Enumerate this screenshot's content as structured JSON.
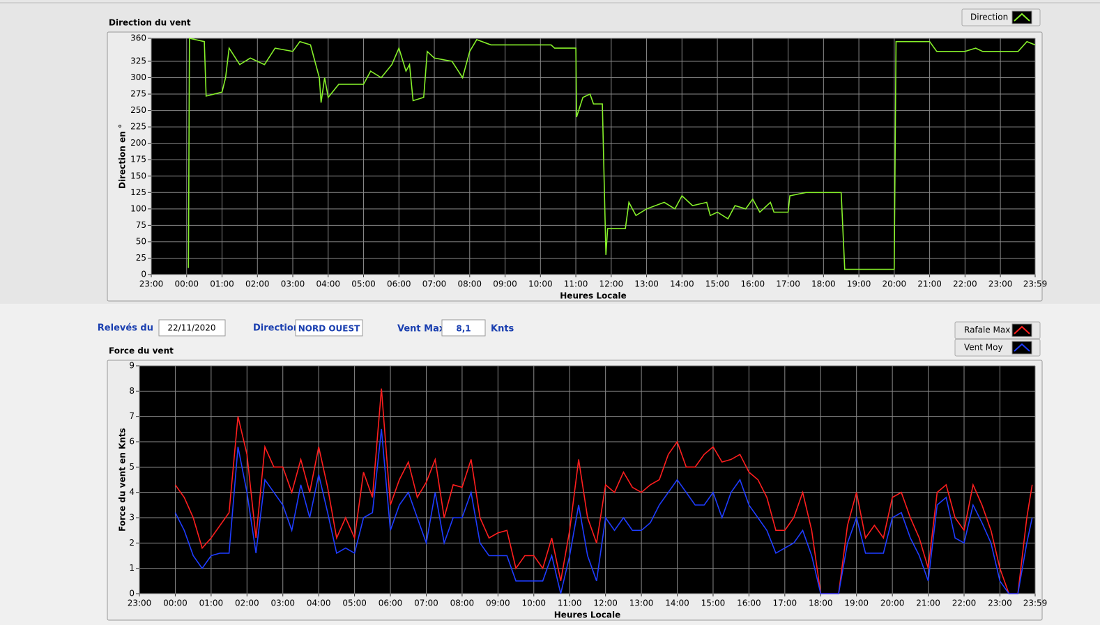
{
  "form": {
    "date_label": "Relevés du",
    "date": "22/11/2020",
    "direction_label": "Direction",
    "direction": "NORD OUEST",
    "max_label": "Vent Max",
    "max": "8,1",
    "max_unit": "Knts"
  },
  "chart_data": [
    {
      "type": "line",
      "title": "Direction du vent",
      "xlabel": "Heures Locale",
      "ylabel": "Direction en °",
      "x": [
        0.05,
        0.08,
        0.5,
        0.55,
        1.0,
        1.1,
        1.2,
        1.5,
        1.8,
        2.2,
        2.5,
        3.0,
        3.2,
        3.5,
        3.75,
        3.8,
        3.9,
        4.0,
        4.3,
        5.0,
        5.2,
        5.5,
        5.8,
        6.0,
        6.2,
        6.3,
        6.4,
        6.7,
        6.8,
        7.0,
        7.5,
        7.8,
        8.0,
        8.2,
        8.6,
        9.0,
        10.3,
        10.4,
        11.0,
        11.02,
        11.2,
        11.4,
        11.5,
        11.75,
        11.85,
        11.9,
        12.4,
        12.5,
        12.7,
        13.0,
        13.5,
        13.8,
        14.0,
        14.3,
        14.7,
        14.8,
        15.0,
        15.3,
        15.5,
        15.8,
        16.0,
        16.2,
        16.5,
        16.6,
        17.0,
        17.05,
        17.5,
        18.5,
        18.6,
        20.0,
        20.05,
        21.0,
        21.2,
        22.0,
        22.3,
        22.5,
        23.5,
        23.75,
        23.98
      ],
      "series": [
        {
          "name": "Direction",
          "color": "#86f02a",
          "values": [
            10,
            360,
            355,
            272,
            278,
            300,
            345,
            320,
            330,
            320,
            345,
            340,
            355,
            350,
            300,
            262,
            300,
            270,
            290,
            290,
            310,
            300,
            320,
            345,
            310,
            320,
            265,
            270,
            340,
            330,
            325,
            300,
            340,
            358,
            350,
            350,
            350,
            345,
            345,
            240,
            270,
            275,
            260,
            260,
            30,
            70,
            70,
            110,
            90,
            100,
            110,
            100,
            120,
            105,
            110,
            90,
            95,
            85,
            105,
            100,
            115,
            95,
            110,
            95,
            95,
            120,
            125,
            125,
            8,
            8,
            355,
            355,
            340,
            340,
            345,
            340,
            340,
            355,
            350
          ]
        }
      ],
      "xlim": [
        -1,
        23.983
      ],
      "xticks": [
        {
          "value": -1,
          "label": "23:00"
        },
        {
          "value": 0,
          "label": "00:00"
        },
        {
          "value": 1,
          "label": "01:00"
        },
        {
          "value": 2,
          "label": "02:00"
        },
        {
          "value": 3,
          "label": "03:00"
        },
        {
          "value": 4,
          "label": "04:00"
        },
        {
          "value": 5,
          "label": "05:00"
        },
        {
          "value": 6,
          "label": "06:00"
        },
        {
          "value": 7,
          "label": "07:00"
        },
        {
          "value": 8,
          "label": "08:00"
        },
        {
          "value": 9,
          "label": "09:00"
        },
        {
          "value": 10,
          "label": "10:00"
        },
        {
          "value": 11,
          "label": "11:00"
        },
        {
          "value": 12,
          "label": "12:00"
        },
        {
          "value": 13,
          "label": "13:00"
        },
        {
          "value": 14,
          "label": "14:00"
        },
        {
          "value": 15,
          "label": "15:00"
        },
        {
          "value": 16,
          "label": "16:00"
        },
        {
          "value": 17,
          "label": "17:00"
        },
        {
          "value": 18,
          "label": "18:00"
        },
        {
          "value": 19,
          "label": "19:00"
        },
        {
          "value": 20,
          "label": "20:00"
        },
        {
          "value": 21,
          "label": "21:00"
        },
        {
          "value": 22,
          "label": "22:00"
        },
        {
          "value": 23,
          "label": "23:00"
        },
        {
          "value": 23.983,
          "label": "23:59"
        }
      ],
      "ylim": [
        0,
        360
      ],
      "yticks": [
        0,
        25,
        50,
        75,
        100,
        125,
        150,
        175,
        200,
        225,
        250,
        275,
        300,
        325,
        360
      ],
      "grid": true,
      "legend": "top-right"
    },
    {
      "type": "line",
      "title": "Force du vent",
      "xlabel": "Heures Locale",
      "ylabel": "Force du vent en Knts",
      "x": [
        0,
        0.25,
        0.5,
        0.75,
        1,
        1.25,
        1.5,
        1.75,
        2,
        2.25,
        2.5,
        2.75,
        3,
        3.25,
        3.5,
        3.75,
        4,
        4.25,
        4.5,
        4.75,
        5,
        5.25,
        5.5,
        5.75,
        6,
        6.25,
        6.5,
        6.75,
        7,
        7.25,
        7.5,
        7.75,
        8,
        8.25,
        8.5,
        8.75,
        9,
        9.25,
        9.5,
        9.75,
        10,
        10.25,
        10.5,
        10.75,
        11,
        11.25,
        11.5,
        11.75,
        12,
        12.25,
        12.5,
        12.75,
        13,
        13.25,
        13.5,
        13.75,
        14,
        14.25,
        14.5,
        14.75,
        15,
        15.25,
        15.5,
        15.75,
        16,
        16.25,
        16.5,
        16.75,
        17,
        17.25,
        17.5,
        17.75,
        18,
        18.5,
        18.75,
        19,
        19.25,
        19.5,
        19.75,
        20,
        20.25,
        20.5,
        20.75,
        21,
        21.25,
        21.5,
        21.75,
        22,
        22.25,
        22.5,
        22.75,
        23,
        23.25,
        23.5,
        23.75,
        23.9
      ],
      "series": [
        {
          "name": "Rafale Max",
          "color": "#ff1e1e",
          "values": [
            4.3,
            3.8,
            3.0,
            1.8,
            2.2,
            2.7,
            3.2,
            7.0,
            5.5,
            2.2,
            5.8,
            5.0,
            5.0,
            4.0,
            5.3,
            4.0,
            5.8,
            4.2,
            2.2,
            3.0,
            2.2,
            4.8,
            3.8,
            8.1,
            3.5,
            4.5,
            5.2,
            3.8,
            4.4,
            5.3,
            3.0,
            4.3,
            4.2,
            5.3,
            3.0,
            2.2,
            2.4,
            2.5,
            1.0,
            1.5,
            1.5,
            1.0,
            2.2,
            0.5,
            2.5,
            5.3,
            3.0,
            2.0,
            4.3,
            4.0,
            4.8,
            4.2,
            4.0,
            4.3,
            4.5,
            5.5,
            6.0,
            5.0,
            5.0,
            5.5,
            5.8,
            5.2,
            5.3,
            5.5,
            4.8,
            4.5,
            3.8,
            2.5,
            2.5,
            3.0,
            4.0,
            2.5,
            0,
            0,
            2.7,
            4.0,
            2.2,
            2.7,
            2.2,
            3.8,
            4.0,
            3.0,
            2.2,
            1.0,
            4.0,
            4.3,
            3.0,
            2.5,
            4.3,
            3.5,
            2.5,
            1.0,
            0,
            0,
            3.0,
            4.3
          ]
        },
        {
          "name": "Vent Moy",
          "color": "#1e3cff",
          "values": [
            3.2,
            2.5,
            1.5,
            1.0,
            1.5,
            1.6,
            1.6,
            5.8,
            4.0,
            1.6,
            4.5,
            4.0,
            3.5,
            2.5,
            4.3,
            3.0,
            4.7,
            3.2,
            1.6,
            1.8,
            1.6,
            3.0,
            3.2,
            6.5,
            2.5,
            3.5,
            4.0,
            3.0,
            2.0,
            4.0,
            2.0,
            3.0,
            3.0,
            4.0,
            2.0,
            1.5,
            1.5,
            1.5,
            0.5,
            0.5,
            0.5,
            0.5,
            1.5,
            0,
            1.5,
            3.5,
            1.5,
            0.5,
            3.0,
            2.5,
            3.0,
            2.5,
            2.5,
            2.8,
            3.5,
            4.0,
            4.5,
            4.0,
            3.5,
            3.5,
            4.0,
            3.0,
            4.0,
            4.5,
            3.5,
            3.0,
            2.5,
            1.6,
            1.8,
            2.0,
            2.5,
            1.5,
            0,
            0,
            2.0,
            3.0,
            1.6,
            1.6,
            1.6,
            3.0,
            3.2,
            2.2,
            1.5,
            0.5,
            3.5,
            3.8,
            2.2,
            2.0,
            3.5,
            2.8,
            2.0,
            0.5,
            0,
            0,
            2.0,
            3.0
          ]
        }
      ],
      "xlim": [
        -1,
        23.983
      ],
      "xticks": [
        {
          "value": -1,
          "label": "23:00"
        },
        {
          "value": 0,
          "label": "00:00"
        },
        {
          "value": 1,
          "label": "01:00"
        },
        {
          "value": 2,
          "label": "02:00"
        },
        {
          "value": 3,
          "label": "03:00"
        },
        {
          "value": 4,
          "label": "04:00"
        },
        {
          "value": 5,
          "label": "05:00"
        },
        {
          "value": 6,
          "label": "06:00"
        },
        {
          "value": 7,
          "label": "07:00"
        },
        {
          "value": 8,
          "label": "08:00"
        },
        {
          "value": 9,
          "label": "09:00"
        },
        {
          "value": 10,
          "label": "10:00"
        },
        {
          "value": 11,
          "label": "11:00"
        },
        {
          "value": 12,
          "label": "12:00"
        },
        {
          "value": 13,
          "label": "13:00"
        },
        {
          "value": 14,
          "label": "14:00"
        },
        {
          "value": 15,
          "label": "15:00"
        },
        {
          "value": 16,
          "label": "16:00"
        },
        {
          "value": 17,
          "label": "17:00"
        },
        {
          "value": 18,
          "label": "18:00"
        },
        {
          "value": 19,
          "label": "19:00"
        },
        {
          "value": 20,
          "label": "20:00"
        },
        {
          "value": 21,
          "label": "21:00"
        },
        {
          "value": 22,
          "label": "22:00"
        },
        {
          "value": 23,
          "label": "23:00"
        },
        {
          "value": 23.983,
          "label": "23:59"
        }
      ],
      "ylim": [
        0,
        9
      ],
      "yticks": [
        0,
        1,
        2,
        3,
        4,
        5,
        6,
        7,
        8,
        9
      ],
      "grid": true,
      "legend": "top-right"
    }
  ]
}
